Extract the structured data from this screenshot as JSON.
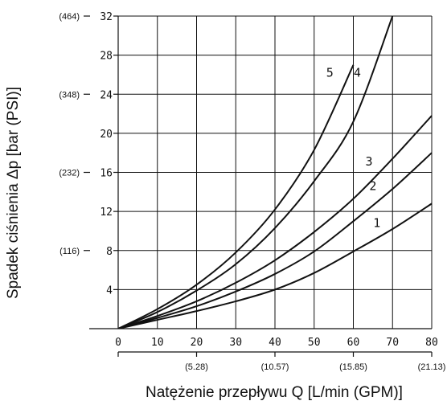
{
  "chart_data": {
    "type": "line",
    "title": "",
    "xlabel": "Natężenie przepływu Q  [L/min (GPM)]",
    "ylabel": "Spadek ciśnienia Δp [bar (PSI)]",
    "xlim": [
      0,
      80
    ],
    "ylim": [
      0,
      32
    ],
    "grid": true,
    "x_ticks": [
      {
        "value": 0,
        "label": "0"
      },
      {
        "value": 10,
        "label": "10"
      },
      {
        "value": 20,
        "label": "20"
      },
      {
        "value": 30,
        "label": "30"
      },
      {
        "value": 40,
        "label": "40"
      },
      {
        "value": 50,
        "label": "50"
      },
      {
        "value": 60,
        "label": "60"
      },
      {
        "value": 70,
        "label": "70"
      },
      {
        "value": 80,
        "label": "80"
      }
    ],
    "x_secondary_ticks": [
      {
        "value": 20,
        "label": "(5.28)"
      },
      {
        "value": 40,
        "label": "(10.57)"
      },
      {
        "value": 60,
        "label": "(15.85)"
      },
      {
        "value": 80,
        "label": "(21.13)"
      }
    ],
    "y_ticks": [
      {
        "value": 4,
        "label": "4"
      },
      {
        "value": 8,
        "label": "8"
      },
      {
        "value": 12,
        "label": "12"
      },
      {
        "value": 16,
        "label": "16"
      },
      {
        "value": 20,
        "label": "20"
      },
      {
        "value": 24,
        "label": "24"
      },
      {
        "value": 28,
        "label": "28"
      },
      {
        "value": 32,
        "label": "32"
      }
    ],
    "y_secondary_ticks": [
      {
        "value": 8,
        "label": "(116)"
      },
      {
        "value": 16,
        "label": "(232)"
      },
      {
        "value": 24,
        "label": "(348)"
      },
      {
        "value": 32,
        "label": "(464)"
      }
    ],
    "series": [
      {
        "name": "1",
        "x": [
          0,
          10,
          20,
          30,
          40,
          50,
          60,
          70,
          80
        ],
        "y": [
          0,
          0.9,
          1.8,
          2.8,
          4.0,
          5.7,
          7.9,
          10.2,
          12.8
        ],
        "label_at": [
          66,
          10.4
        ]
      },
      {
        "name": "2",
        "x": [
          0,
          10,
          20,
          30,
          40,
          50,
          60,
          70,
          80
        ],
        "y": [
          0,
          1.1,
          2.3,
          3.8,
          5.6,
          7.9,
          11.0,
          14.3,
          18.0
        ],
        "label_at": [
          65,
          14.2
        ]
      },
      {
        "name": "3",
        "x": [
          0,
          10,
          20,
          30,
          40,
          50,
          60,
          70,
          80
        ],
        "y": [
          0,
          1.3,
          2.8,
          4.7,
          7.0,
          9.9,
          13.3,
          17.4,
          21.8
        ],
        "label_at": [
          64,
          16.7
        ]
      },
      {
        "name": "4",
        "x": [
          0,
          10,
          20,
          30,
          40,
          50,
          60,
          70
        ],
        "y": [
          0,
          1.7,
          3.9,
          6.6,
          10.3,
          15.1,
          21.2,
          32.0
        ],
        "label_at": [
          61,
          25.8
        ]
      },
      {
        "name": "5",
        "x": [
          0,
          10,
          20,
          30,
          40,
          50,
          60
        ],
        "y": [
          0,
          2.0,
          4.5,
          7.8,
          12.2,
          18.3,
          27.0
        ],
        "label_at": [
          54,
          25.8
        ]
      }
    ]
  }
}
